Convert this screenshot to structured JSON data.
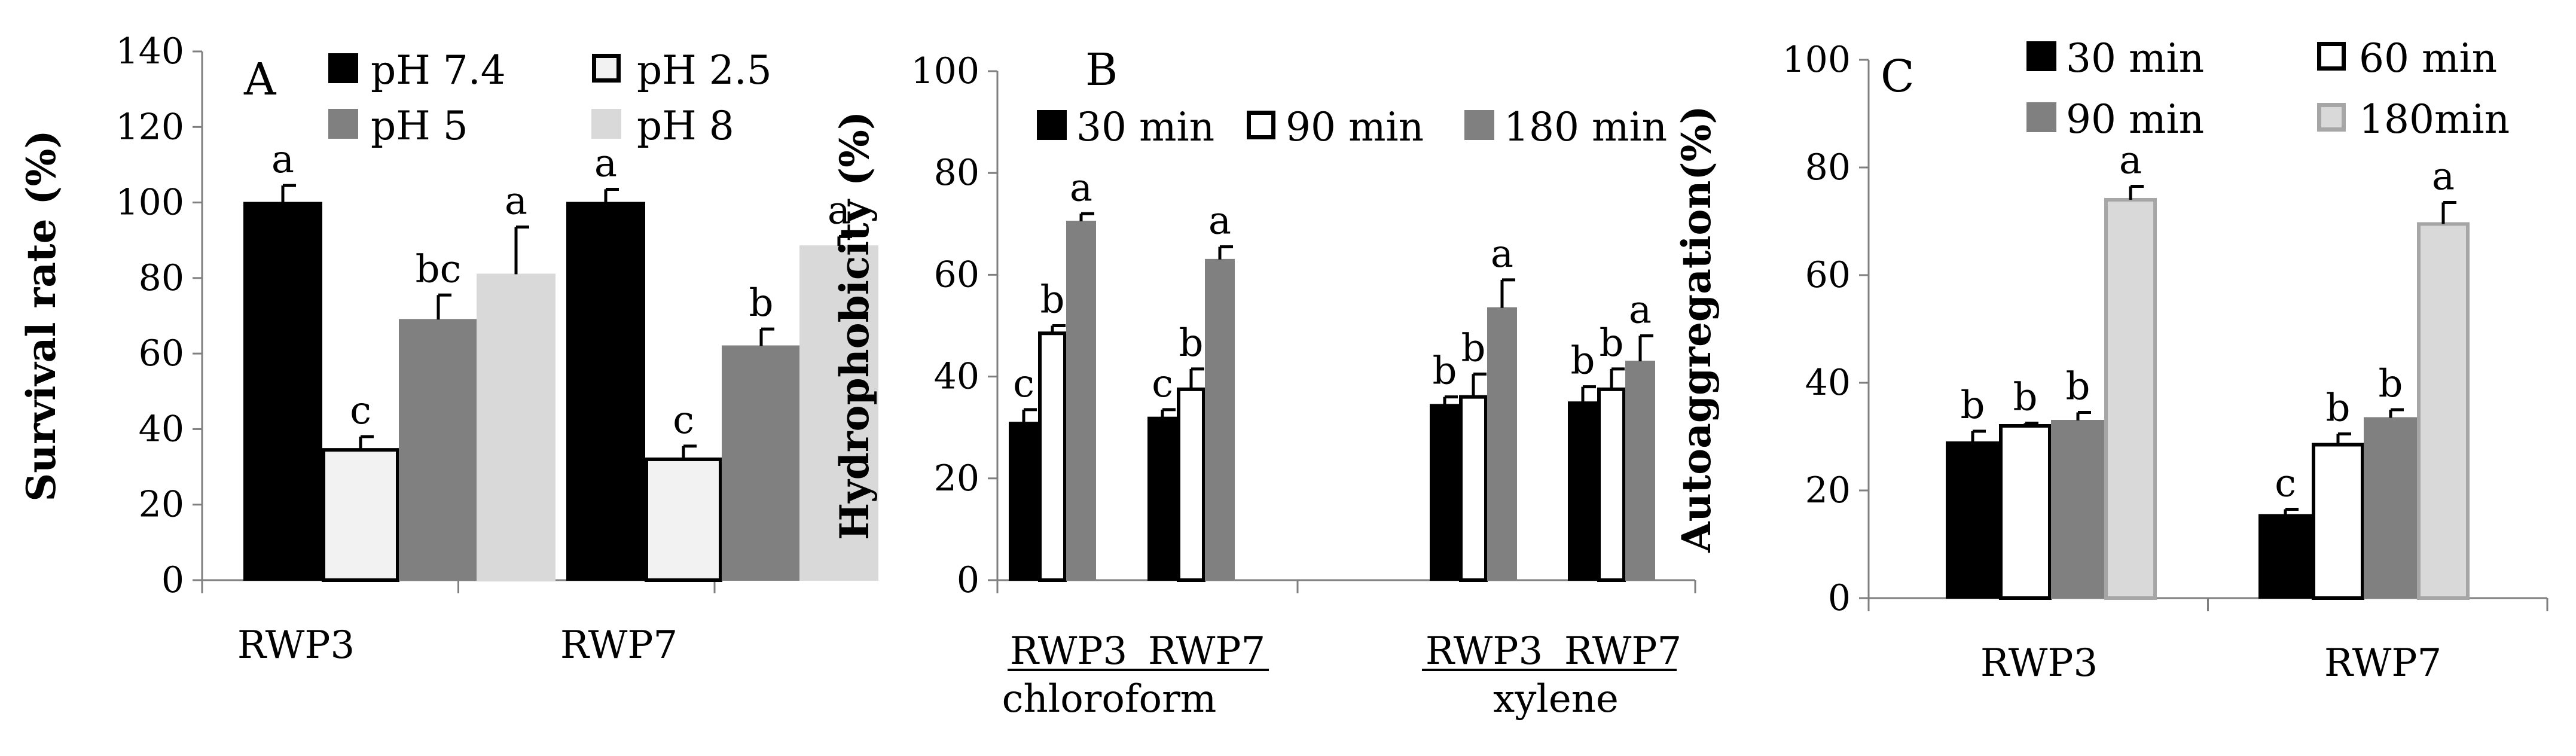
{
  "chart_data": [
    {
      "panel": "A",
      "type": "bar",
      "ylabel": "Survival rate (%)",
      "ylim": [
        0,
        140
      ],
      "yticks": [
        0,
        20,
        40,
        60,
        80,
        100,
        120,
        140
      ],
      "categories": [
        "RWP3",
        "RWP7"
      ],
      "series": [
        {
          "name": "pH 7.4",
          "color": "#000000",
          "stroke": "#000000",
          "values": [
            100,
            100
          ],
          "errors": [
            4.5,
            3.5
          ],
          "letters": [
            "a",
            "a"
          ]
        },
        {
          "name": "pH 2.5",
          "color": "#f2f2f2",
          "stroke": "#000000",
          "values": [
            34.5,
            32
          ],
          "errors": [
            3.5,
            3.5
          ],
          "letters": [
            "c",
            "c"
          ]
        },
        {
          "name": "pH 5",
          "color": "#808080",
          "stroke": "#808080",
          "values": [
            69,
            62
          ],
          "errors": [
            6.5,
            4.5
          ],
          "letters": [
            "bc",
            "b"
          ]
        },
        {
          "name": "pH 8",
          "color": "#d9d9d9",
          "stroke": "#d9d9d9",
          "values": [
            81,
            88.5
          ],
          "errors": [
            12.5,
            2.5
          ],
          "letters": [
            "a",
            "a"
          ]
        }
      ]
    },
    {
      "panel": "B",
      "type": "bar",
      "ylabel": "Hydrophobicity (%)",
      "ylim": [
        0,
        100
      ],
      "yticks": [
        0,
        20,
        40,
        60,
        80,
        100
      ],
      "categories": [
        "RWP3",
        "RWP7",
        "RWP3",
        "RWP7"
      ],
      "groups": [
        "chloroform",
        "xylene"
      ],
      "series": [
        {
          "name": "30 min",
          "color": "#000000",
          "stroke": "#000000",
          "values": [
            31,
            32,
            34.5,
            35
          ],
          "errors": [
            2.5,
            1.5,
            1.5,
            3
          ],
          "letters": [
            "c",
            "c",
            "b",
            "b"
          ]
        },
        {
          "name": "90 min",
          "color": "#ffffff",
          "stroke": "#000000",
          "values": [
            48.5,
            37.5,
            36,
            37.5
          ],
          "errors": [
            1.5,
            4,
            4.5,
            4
          ],
          "letters": [
            "b",
            "b",
            "b",
            "b"
          ]
        },
        {
          "name": "180 min",
          "color": "#808080",
          "stroke": "#808080",
          "values": [
            70.5,
            63,
            53.5,
            43
          ],
          "errors": [
            1.5,
            2.5,
            5.5,
            5
          ],
          "letters": [
            "a",
            "a",
            "a",
            "a"
          ]
        }
      ]
    },
    {
      "panel": "C",
      "type": "bar",
      "ylabel": "Autoaggregation(%)",
      "ylim": [
        0,
        100
      ],
      "yticks": [
        0,
        20,
        40,
        60,
        80,
        100
      ],
      "categories": [
        "RWP3",
        "RWP7"
      ],
      "series": [
        {
          "name": "30 min",
          "color": "#000000",
          "stroke": "#000000",
          "values": [
            29,
            15.5
          ],
          "errors": [
            2,
            1
          ],
          "letters": [
            "b",
            "c"
          ]
        },
        {
          "name": "60 min",
          "color": "#ffffff",
          "stroke": "#000000",
          "values": [
            32,
            28.5
          ],
          "errors": [
            0.5,
            2
          ],
          "letters": [
            "b",
            "b"
          ]
        },
        {
          "name": "90 min",
          "color": "#808080",
          "stroke": "#808080",
          "values": [
            33,
            33.5
          ],
          "errors": [
            1.5,
            1.5
          ],
          "letters": [
            "b",
            "b"
          ]
        },
        {
          "name": "180min",
          "color": "#d9d9d9",
          "stroke": "#a6a6a6",
          "values": [
            74,
            69.5
          ],
          "errors": [
            2.5,
            4
          ],
          "letters": [
            "a",
            "a"
          ]
        }
      ]
    }
  ]
}
